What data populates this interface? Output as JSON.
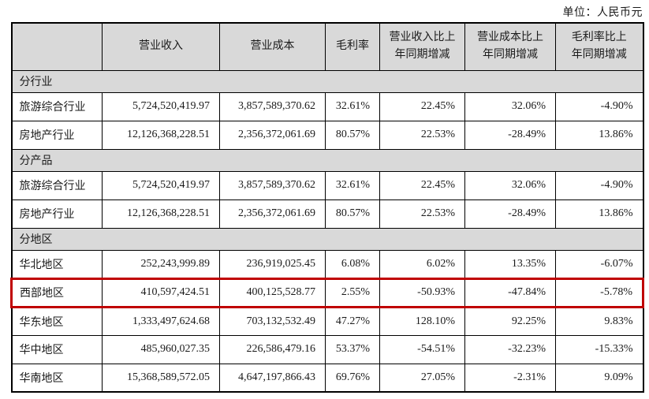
{
  "unit_label": "单位：人民币元",
  "colors": {
    "highlight_border": "#c00000",
    "shaded_cell_bg": "#d9d9d9",
    "table_border": "#000000"
  },
  "table": {
    "columns": [
      "",
      "营业收入",
      "营业成本",
      "毛利率",
      "营业收入比上\n年同期增减",
      "营业成本比上\n年同期增减",
      "毛利率比上\n年同期增减"
    ],
    "rows": [
      {
        "type": "section",
        "label": "分行业"
      },
      {
        "type": "data",
        "cells": [
          "旅游综合行业",
          "5,724,520,419.97",
          "3,857,589,370.62",
          "32.61%",
          "22.45%",
          "32.06%",
          "-4.90%"
        ]
      },
      {
        "type": "data",
        "cells": [
          "房地产行业",
          "12,126,368,228.51",
          "2,356,372,061.69",
          "80.57%",
          "22.53%",
          "-28.49%",
          "13.86%"
        ]
      },
      {
        "type": "section",
        "label": "分产品"
      },
      {
        "type": "data",
        "cells": [
          "旅游综合行业",
          "5,724,520,419.97",
          "3,857,589,370.62",
          "32.61%",
          "22.45%",
          "32.06%",
          "-4.90%"
        ]
      },
      {
        "type": "data",
        "cells": [
          "房地产行业",
          "12,126,368,228.51",
          "2,356,372,061.69",
          "80.57%",
          "22.53%",
          "-28.49%",
          "13.86%"
        ]
      },
      {
        "type": "section",
        "label": "分地区"
      },
      {
        "type": "data",
        "cells": [
          "华北地区",
          "252,243,999.89",
          "236,919,025.45",
          "6.08%",
          "6.02%",
          "13.35%",
          "-6.07%"
        ]
      },
      {
        "type": "data",
        "highlighted": true,
        "cells": [
          "西部地区",
          "410,597,424.51",
          "400,125,528.77",
          "2.55%",
          "-50.93%",
          "-47.84%",
          "-5.78%"
        ]
      },
      {
        "type": "data",
        "cells": [
          "华东地区",
          "1,333,497,624.68",
          "703,132,532.49",
          "47.27%",
          "128.10%",
          "92.25%",
          "9.83%"
        ]
      },
      {
        "type": "data",
        "cells": [
          "华中地区",
          "485,960,027.35",
          "226,586,479.16",
          "53.37%",
          "-54.51%",
          "-32.23%",
          "-15.33%"
        ]
      },
      {
        "type": "data",
        "cells": [
          "华南地区",
          "15,368,589,572.05",
          "4,647,197,866.43",
          "69.76%",
          "27.05%",
          "-2.31%",
          "9.09%"
        ]
      }
    ]
  }
}
